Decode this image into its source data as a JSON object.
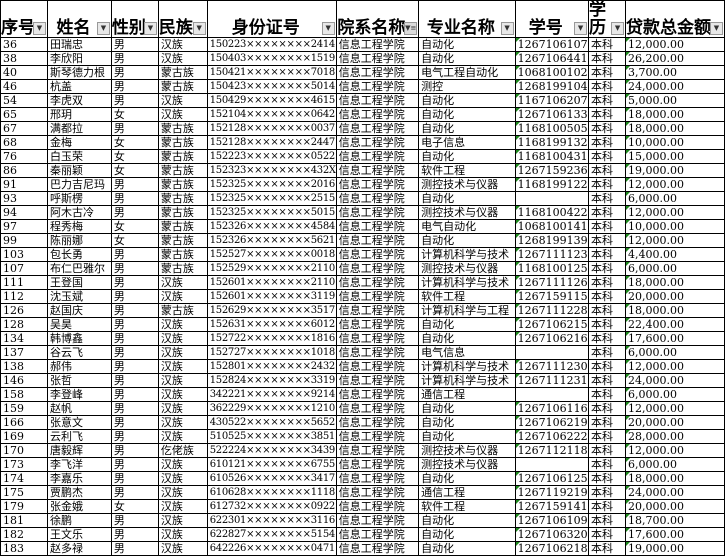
{
  "columns": [
    "序号",
    "姓名",
    "性别",
    "民族",
    "身份证号",
    "院系名称",
    "专业名称",
    "学号",
    "学历",
    "贷款总金额"
  ],
  "header_display": [
    "序号",
    "姓名",
    "性别",
    "民族",
    "身份证号",
    "院系名称",
    "专业名称",
    "学号",
    "学历",
    "贷款总金额"
  ],
  "filter_icons": [
    "dropdown-arrow",
    "dropdown-arrow",
    "dropdown-arrow",
    "dropdown-arrow",
    "dropdown-arrow",
    "filter-active",
    "dropdown-arrow",
    "dropdown-arrow",
    "dropdown-arrow",
    "dropdown-arrow"
  ],
  "colors": {
    "text_number_indicator": "#1d8a1d"
  },
  "rows": [
    [
      "36",
      "田瑞忠",
      "男",
      "汉族",
      "150223××××××××2414",
      "信息工程学院",
      "自动化",
      "1267106107",
      "本科",
      "12,000.00"
    ],
    [
      "38",
      "李欣阳",
      "男",
      "汉族",
      "150403××××××××1519",
      "信息工程学院",
      "自动化",
      "1267106441",
      "本科",
      "26,200.00"
    ],
    [
      "40",
      "斯琴德力根",
      "男",
      "蒙古族",
      "150421××××××××7018",
      "信息工程学院",
      "电气工程自动化",
      "1068100102",
      "本科",
      "3,700.00"
    ],
    [
      "46",
      "杭盖",
      "男",
      "蒙古族",
      "150423××××××××5014",
      "信息工程学院",
      "测控",
      "1268199104",
      "本科",
      "24,000.00"
    ],
    [
      "54",
      "李虎双",
      "男",
      "汉族",
      "150429××××××××4615",
      "信息工程学院",
      "自动化",
      "1167106207",
      "本科",
      "5,000.00"
    ],
    [
      "65",
      "邢玥",
      "女",
      "汉族",
      "152104××××××××0642",
      "信息工程学院",
      "自动化",
      "1267106133",
      "本科",
      "18,000.00"
    ],
    [
      "67",
      "满都拉",
      "男",
      "蒙古族",
      "152128××××××××0037",
      "信息工程学院",
      "自动化",
      "1168100505",
      "本科",
      "18,000.00"
    ],
    [
      "68",
      "金梅",
      "女",
      "蒙古族",
      "152128××××××××2447",
      "信息工程学院",
      "电子信息",
      "1168199132",
      "本科",
      "10,000.00"
    ],
    [
      "76",
      "白玉荣",
      "女",
      "蒙古族",
      "152223××××××××0522",
      "信息工程学院",
      "自动化",
      "1168100431",
      "本科",
      "15,000.00"
    ],
    [
      "86",
      "秦丽颖",
      "女",
      "蒙古族",
      "152323××××××××432X",
      "信息工程学院",
      "软件工程",
      "1267159236",
      "本科",
      "19,000.00"
    ],
    [
      "91",
      "巴力吉尼玛",
      "男",
      "蒙古族",
      "152325××××××××2016",
      "信息工程学院",
      "测控技术与仪器",
      "1168199122",
      "本科",
      "12,000.00"
    ],
    [
      "93",
      "呼斯楞",
      "男",
      "蒙古族",
      "152325××××××××2515",
      "信息工程学院",
      "自动化",
      "",
      "本科",
      "6,000.00"
    ],
    [
      "94",
      "阿木古冷",
      "男",
      "蒙古族",
      "152325××××××××5015",
      "信息工程学院",
      "测控技术与仪器",
      "1168100422",
      "本科",
      "12,000.00"
    ],
    [
      "97",
      "程秀梅",
      "女",
      "蒙古族",
      "152326××××××××4584",
      "信息工程学院",
      "电气自动化",
      "1068100141",
      "本科",
      "10,000.00"
    ],
    [
      "99",
      "陈丽娜",
      "女",
      "蒙古族",
      "152326××××××××5621",
      "信息工程学院",
      "自动化",
      "1268199139",
      "本科",
      "12,000.00"
    ],
    [
      "103",
      "包长勇",
      "男",
      "蒙古族",
      "152527××××××××0018",
      "信息工程学院",
      "计算机科学与技术",
      "1267111123",
      "本科",
      "4,400.00"
    ],
    [
      "107",
      "布仁巴雅尔",
      "男",
      "蒙古族",
      "152529××××××××2110",
      "信息工程学院",
      "测控技术与仪器",
      "1168100125",
      "本科",
      "6,000.00"
    ],
    [
      "111",
      "王登国",
      "男",
      "汉族",
      "152601××××××××2110",
      "信息工程学院",
      "计算机科学与技术",
      "1267111126",
      "本科",
      "18,000.00"
    ],
    [
      "112",
      "沈玉斌",
      "男",
      "汉族",
      "152601××××××××3119",
      "信息工程学院",
      "软件工程",
      "1267159115",
      "本科",
      "20,000.00"
    ],
    [
      "126",
      "赵国庆",
      "男",
      "蒙古族",
      "152629××××××××3517",
      "信息工程学院",
      "计算机科学与工程",
      "1267111228",
      "本科",
      "18,000.00"
    ],
    [
      "128",
      "吴昊",
      "男",
      "汉族",
      "152631××××××××6012",
      "信息工程学院",
      "自动化",
      "1267106215",
      "本科",
      "22,400.00"
    ],
    [
      "134",
      "韩博鑫",
      "男",
      "汉族",
      "152722××××××××1816",
      "信息工程学院",
      "自动化",
      "1267106216",
      "本科",
      "17,600.00"
    ],
    [
      "137",
      "谷云飞",
      "男",
      "汉族",
      "152727××××××××1018",
      "信息工程学院",
      "电气信息",
      "",
      "本科",
      "6,000.00"
    ],
    [
      "138",
      "郝伟",
      "男",
      "汉族",
      "152801××××××××2432",
      "信息工程学院",
      "计算机科学与技术",
      "1267111230",
      "本科",
      "12,000.00"
    ],
    [
      "146",
      "张哲",
      "男",
      "汉族",
      "152824××××××××3319",
      "信息工程学院",
      "计算机科学与技术",
      "1267111231",
      "本科",
      "24,000.00"
    ],
    [
      "158",
      "李登峰",
      "男",
      "汉族",
      "342221××××××××9214",
      "信息工程学院",
      "通信工程",
      "",
      "本科",
      "6,000.00"
    ],
    [
      "159",
      "赵帆",
      "男",
      "汉族",
      "362229××××××××1210",
      "信息工程学院",
      "自动化",
      "1267106116",
      "本科",
      "12,000.00"
    ],
    [
      "166",
      "张意文",
      "男",
      "汉族",
      "430522××××××××5652",
      "信息工程学院",
      "自动化",
      "1267106219",
      "本科",
      "20,000.00"
    ],
    [
      "169",
      "云利飞",
      "男",
      "汉族",
      "510525××××××××3851",
      "信息工程学院",
      "自动化",
      "1267106222",
      "本科",
      "28,000.00"
    ],
    [
      "170",
      "唐毅辉",
      "男",
      "仡佬族",
      "522224××××××××3439",
      "信息工程学院",
      "测控技术与仪器",
      "1267112118",
      "本科",
      "12,000.00"
    ],
    [
      "173",
      "李飞洋",
      "男",
      "汉族",
      "610121××××××××6755",
      "信息工程学院",
      "测控技术与仪器",
      "",
      "本科",
      "6,000.00"
    ],
    [
      "174",
      "李嘉乐",
      "男",
      "汉族",
      "610526××××××××3417",
      "信息工程学院",
      "自动化",
      "1267106125",
      "本科",
      "18,000.00"
    ],
    [
      "175",
      "贾鹏杰",
      "男",
      "汉族",
      "610628××××××××1118",
      "信息工程学院",
      "通信工程",
      "1267119219",
      "本科",
      "24,000.00"
    ],
    [
      "179",
      "张金娥",
      "女",
      "汉族",
      "612732××××××××0922",
      "信息工程学院",
      "软件工程",
      "1267159141",
      "本科",
      "20,000.00"
    ],
    [
      "181",
      "徐鹏",
      "男",
      "汉族",
      "622301××××××××3116",
      "信息工程学院",
      "自动化",
      "1267106109",
      "本科",
      "18,700.00"
    ],
    [
      "182",
      "王文乐",
      "男",
      "汉族",
      "622827××××××××5154",
      "信息工程学院",
      "自动化",
      "1267106320",
      "本科",
      "17,600.00"
    ],
    [
      "183",
      "赵多禄",
      "男",
      "汉族",
      "642226××××××××0471",
      "信息工程学院",
      "自动化",
      "1267106218",
      "本科",
      "19,000.00"
    ]
  ]
}
